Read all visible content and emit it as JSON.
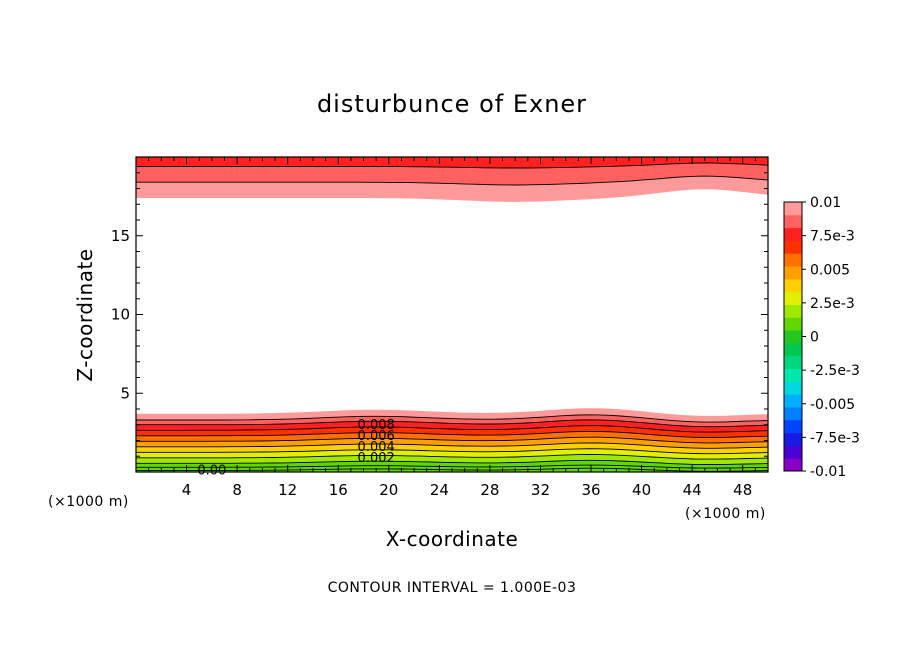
{
  "chart_data": {
    "type": "heatmap",
    "title": "disturbunce of Exner",
    "xlabel": "X-coordinate",
    "ylabel": "Z-coordinate",
    "x_unit": "(×1000 m)",
    "y_unit": "(×1000 m)",
    "xlim": [
      0,
      50
    ],
    "ylim": [
      0,
      20
    ],
    "x_ticks": [
      4,
      8,
      12,
      16,
      20,
      24,
      28,
      32,
      36,
      40,
      44,
      48
    ],
    "y_ticks": [
      5,
      10,
      15
    ],
    "colorbar": {
      "labels": [
        "0.01",
        "7.5e-3",
        "0.005",
        "2.5e-3",
        "0",
        "-2.5e-3",
        "-0.005",
        "-7.5e-3",
        "-0.01"
      ],
      "levels": [
        -0.01,
        -0.009,
        -0.008,
        -0.007,
        -0.006,
        -0.005,
        -0.004,
        -0.003,
        -0.002,
        -0.001,
        0,
        0.001,
        0.002,
        0.003,
        0.004,
        0.005,
        0.006,
        0.007,
        0.008,
        0.009,
        0.01
      ],
      "colors": [
        "#8a00c8",
        "#4b00d6",
        "#1a1ae6",
        "#0044ff",
        "#0080ff",
        "#00b0ff",
        "#00d8e0",
        "#00e8b0",
        "#00d880",
        "#00c850",
        "#20c820",
        "#60d800",
        "#a0e800",
        "#e0f000",
        "#ffd000",
        "#ffa000",
        "#ff7000",
        "#ff3000",
        "#ff2020",
        "#ff6060",
        "#ff9a9a"
      ]
    },
    "contour_labels": [
      {
        "text": "0.008",
        "x": 19,
        "z": 3.0
      },
      {
        "text": "0.006",
        "x": 19,
        "z": 2.3
      },
      {
        "text": "0.004",
        "x": 19,
        "z": 1.6
      },
      {
        "text": "0.002",
        "x": 19,
        "z": 0.9
      },
      {
        "text": "0.00",
        "x": 6,
        "z": 0.1
      }
    ],
    "bottom_bands": [
      {
        "color": "#ff9a9a",
        "top": 3.7
      },
      {
        "color": "#ff6060",
        "top": 3.3
      },
      {
        "color": "#ff2020",
        "top": 3.0
      },
      {
        "color": "#ff3000",
        "top": 2.65
      },
      {
        "color": "#ff7000",
        "top": 2.3
      },
      {
        "color": "#ffa000",
        "top": 1.95
      },
      {
        "color": "#ffd000",
        "top": 1.6
      },
      {
        "color": "#e0f000",
        "top": 1.25
      },
      {
        "color": "#a0e800",
        "top": 0.9
      },
      {
        "color": "#60d800",
        "top": 0.55
      }
    ],
    "top_bands": [
      {
        "color": "#ff9a9a",
        "bottom": 17.4
      },
      {
        "color": "#ff6060",
        "bottom": 18.4
      },
      {
        "color": "#ff2020",
        "bottom": 19.4
      }
    ],
    "note": "CONTOUR INTERVAL = 1.000E-03"
  }
}
